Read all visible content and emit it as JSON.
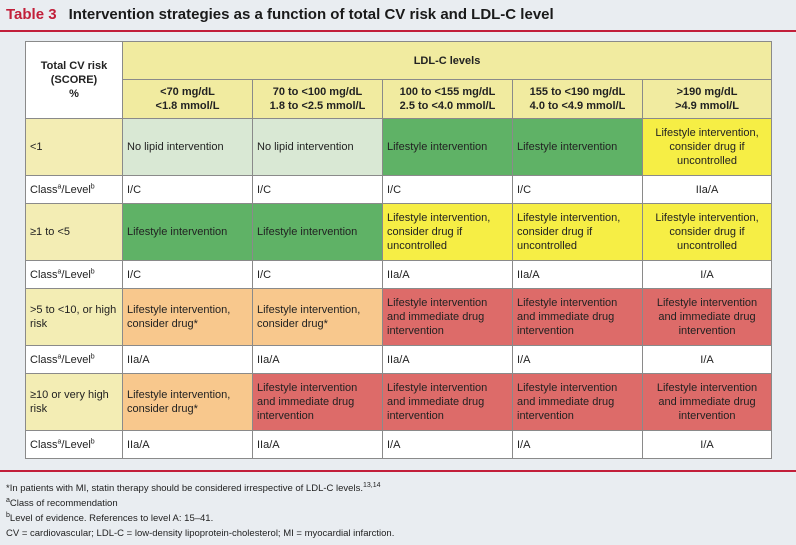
{
  "title": {
    "label": "Table 3",
    "text": "Intervention strategies as a function of total CV risk and LDL-C level"
  },
  "table": {
    "risk_header": [
      "Total CV risk",
      "(SCORE)",
      "%"
    ],
    "ldl_header": "LDL-C levels",
    "columns": [
      [
        "<70 mg/dL",
        "<1.8 mmol/L"
      ],
      [
        "70 to <100 mg/dL",
        "1.8 to <2.5 mmol/L"
      ],
      [
        "100 to <155 mg/dL",
        "2.5 to <4.0 mmol/L"
      ],
      [
        "155 to <190 mg/dL",
        "4.0 to <4.9 mmol/L"
      ],
      [
        ">190 mg/dL",
        ">4.9 mmol/L"
      ]
    ],
    "class_label": "Class",
    "class_sup_a": "a",
    "class_mid": "/Level",
    "class_sup_b": "b",
    "rows": [
      {
        "risk": "<1",
        "cells": [
          "No lipid intervention",
          "No lipid intervention",
          "Lifestyle intervention",
          "Lifestyle intervention",
          "Lifestyle intervention, consider drug if uncontrolled"
        ],
        "classes": [
          "I/C",
          "I/C",
          "I/C",
          "I/C",
          "IIa/A"
        ]
      },
      {
        "risk": "≥1 to <5",
        "cells": [
          "Lifestyle intervention",
          "Lifestyle intervention",
          "Lifestyle intervention, consider drug if uncontrolled",
          "Lifestyle intervention, consider drug if uncontrolled",
          "Lifestyle intervention, consider drug if uncontrolled"
        ],
        "classes": [
          "I/C",
          "I/C",
          "IIa/A",
          "IIa/A",
          "I/A"
        ]
      },
      {
        "risk": ">5 to <10, or high risk",
        "cells": [
          "Lifestyle intervention, consider drug*",
          "Lifestyle intervention, consider drug*",
          "Lifestyle intervention and immediate drug intervention",
          "Lifestyle intervention and immediate drug intervention",
          "Lifestyle intervention and immediate drug intervention"
        ],
        "classes": [
          "IIa/A",
          "IIa/A",
          "IIa/A",
          "I/A",
          "I/A"
        ]
      },
      {
        "risk": "≥10 or very high risk",
        "cells": [
          "Lifestyle intervention, consider drug*",
          "Lifestyle intervention and immediate drug intervention",
          "Lifestyle intervention and immediate drug intervention",
          "Lifestyle intervention and immediate drug intervention",
          "Lifestyle intervention and immediate drug intervention"
        ],
        "classes": [
          "IIa/A",
          "IIa/A",
          "I/A",
          "I/A",
          "I/A"
        ]
      }
    ],
    "colors": {
      "none": "#d9e8d4",
      "green": "#5fb266",
      "yellow": "#f6ee45",
      "orange": "#f8c88d",
      "red": "#dd6b69",
      "header": "#f1eba0",
      "accent": "#c21f3a"
    }
  },
  "footnotes": {
    "star": "*In patients with MI, statin therapy should be considered irrespective of LDL-C levels.",
    "star_refs": "13,14",
    "a_mark": "a",
    "a": "Class of recommendation",
    "b_mark": "b",
    "b": "Level of evidence. References to level A: 15–41.",
    "abbr": "CV = cardiovascular; LDL-C = low-density lipoprotein-cholesterol; MI = myocardial infarction."
  }
}
